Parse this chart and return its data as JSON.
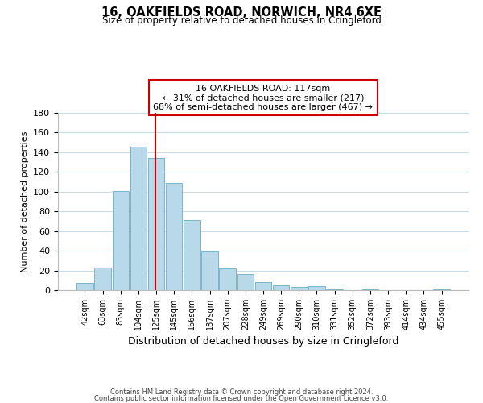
{
  "title_line1": "16, OAKFIELDS ROAD, NORWICH, NR4 6XE",
  "title_line2": "Size of property relative to detached houses in Cringleford",
  "xlabel": "Distribution of detached houses by size in Cringleford",
  "ylabel": "Number of detached properties",
  "bar_values": [
    7,
    23,
    101,
    146,
    134,
    109,
    71,
    39,
    22,
    16,
    8,
    5,
    3,
    4,
    1,
    0,
    1,
    0,
    0,
    0,
    1
  ],
  "bar_labels": [
    "42sqm",
    "63sqm",
    "83sqm",
    "104sqm",
    "125sqm",
    "145sqm",
    "166sqm",
    "187sqm",
    "207sqm",
    "228sqm",
    "249sqm",
    "269sqm",
    "290sqm",
    "310sqm",
    "331sqm",
    "352sqm",
    "372sqm",
    "393sqm",
    "414sqm",
    "434sqm",
    "455sqm"
  ],
  "bar_color": "#b8d9ea",
  "bar_edge_color": "#7ab4cc",
  "vline_x": 3.97,
  "vline_color": "#cc0000",
  "annotation_line1": "16 OAKFIELDS ROAD: 117sqm",
  "annotation_line2": "← 31% of detached houses are smaller (217)",
  "annotation_line3": "68% of semi-detached houses are larger (467) →",
  "ylim": [
    0,
    180
  ],
  "yticks": [
    0,
    20,
    40,
    60,
    80,
    100,
    120,
    140,
    160,
    180
  ],
  "footer_line1": "Contains HM Land Registry data © Crown copyright and database right 2024.",
  "footer_line2": "Contains public sector information licensed under the Open Government Licence v3.0.",
  "background_color": "#ffffff",
  "grid_color": "#c8dce8"
}
